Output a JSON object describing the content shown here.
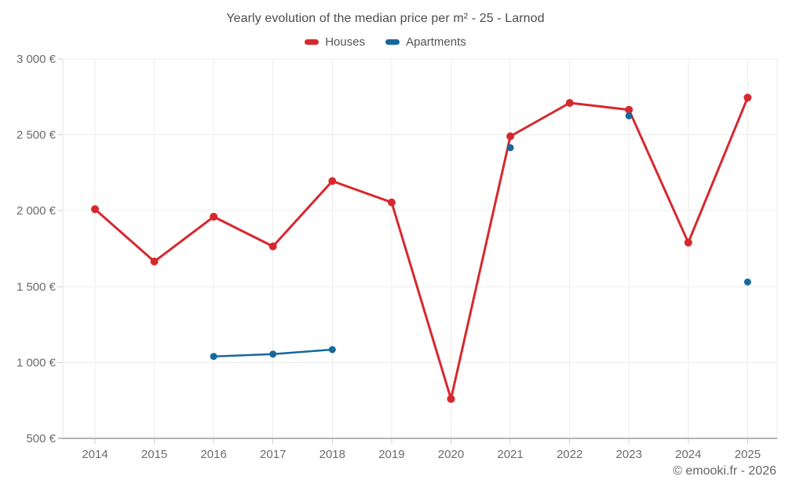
{
  "footer": {
    "credit": "© emooki.fr - 2026"
  },
  "colors": {
    "houses": "#d7282e",
    "apartments": "#16699c",
    "grid": "#ededed",
    "left_axis_line": "#e0e0e0",
    "bottom_axis_line": "#b3b3b3",
    "tick_mark": "#d0d0d0",
    "tick_text": "#6b6b6b",
    "title_text": "#4d4d4d",
    "background": "#ffffff"
  },
  "chart_data": {
    "type": "line",
    "title": "Yearly evolution of the median price per m² - 25 - Larnod",
    "categories": [
      "2014",
      "2015",
      "2016",
      "2017",
      "2018",
      "2019",
      "2020",
      "2021",
      "2022",
      "2023",
      "2024",
      "2025"
    ],
    "series": [
      {
        "name": "Houses",
        "color": "#d7282e",
        "values": [
          2010,
          1665,
          1960,
          1765,
          2195,
          2055,
          760,
          2490,
          2710,
          2665,
          1790,
          2745
        ]
      },
      {
        "name": "Apartments",
        "color": "#16699c",
        "values": [
          null,
          null,
          1040,
          1055,
          1085,
          null,
          null,
          2415,
          null,
          2625,
          null,
          1530
        ]
      }
    ],
    "unit": "€",
    "ylim": [
      500,
      3000
    ],
    "yticks": [
      500,
      1000,
      1500,
      2000,
      2500,
      3000
    ],
    "ytick_labels": [
      "500 €",
      "1 000 €",
      "1 500 €",
      "2 000 €",
      "2 500 €",
      "3 000 €"
    ],
    "grid": true,
    "legend_position": "top",
    "xlabel": "",
    "ylabel": ""
  }
}
